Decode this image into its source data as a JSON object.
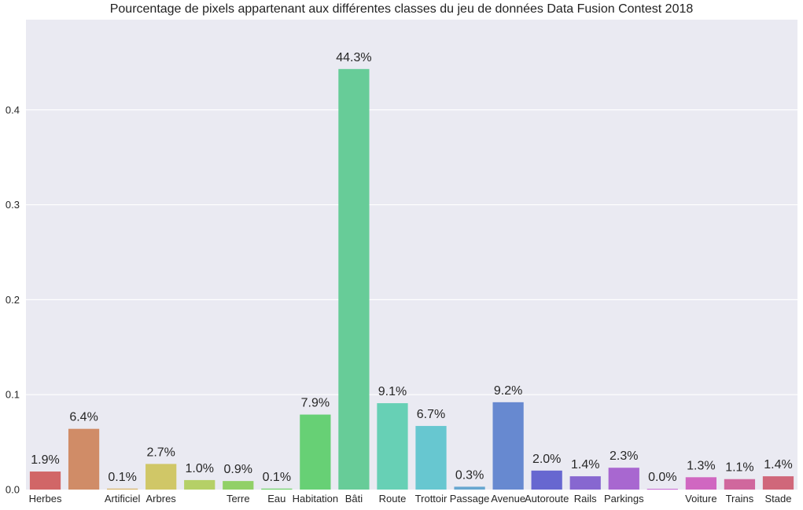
{
  "chart_data": {
    "type": "bar",
    "title": "Pourcentage de pixels appartenant aux différentes classes du jeu de données Data Fusion Contest 2018",
    "xlabel": "",
    "ylabel": "",
    "ylim": [
      0,
      0.495
    ],
    "yticks": [
      0.0,
      0.1,
      0.2,
      0.3,
      0.4
    ],
    "ytick_labels": [
      "0.0",
      "0.1",
      "0.2",
      "0.3",
      "0.4"
    ],
    "grid": true,
    "background": "#eaeaf2",
    "categories": [
      "Herbes",
      "",
      "Artificiel",
      "Arbres",
      "",
      "Terre",
      "Eau",
      "Habitation",
      "Bâti",
      "Route",
      "Trottoir",
      "Passage",
      "Avenue",
      "Autoroute",
      "Rails",
      "Parkings",
      "",
      "Voiture",
      "Trains",
      "Stade"
    ],
    "values": [
      0.019,
      0.064,
      0.001,
      0.027,
      0.01,
      0.009,
      0.001,
      0.079,
      0.443,
      0.091,
      0.067,
      0.003,
      0.092,
      0.02,
      0.014,
      0.023,
      0.0,
      0.013,
      0.011,
      0.014
    ],
    "data_labels": [
      "1.9%",
      "6.4%",
      "0.1%",
      "2.7%",
      "1.0%",
      "0.9%",
      "0.1%",
      "7.9%",
      "44.3%",
      "9.1%",
      "6.7%",
      "0.3%",
      "9.2%",
      "2.0%",
      "1.4%",
      "2.3%",
      "0.0%",
      "1.3%",
      "1.1%",
      "1.4%"
    ],
    "colors": [
      "#d16667",
      "#d08c67",
      "#d4b267",
      "#d0c767",
      "#b5d067",
      "#91d067",
      "#6dd067",
      "#67d075",
      "#67cc98",
      "#67d0b5",
      "#67c7d0",
      "#67a6d0",
      "#6789d0",
      "#6767d0",
      "#8767d0",
      "#a867d0",
      "#c767d0",
      "#d067c1",
      "#d0679d",
      "#d0677a"
    ]
  }
}
